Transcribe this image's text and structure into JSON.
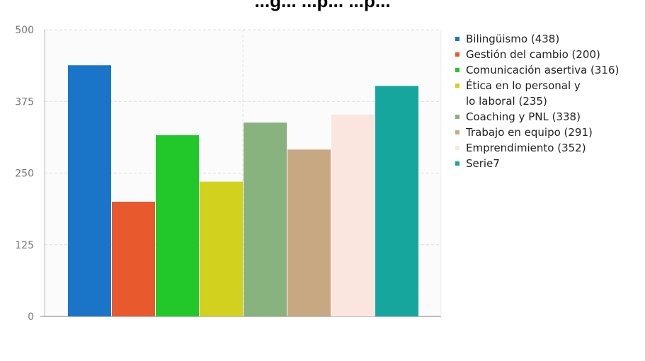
{
  "chart_data": {
    "type": "bar",
    "title": "...g... ...p... ...p...",
    "categories": [
      "Bilingüismo",
      "Gestión del cambio",
      "Comunicación asertiva",
      "Ética en lo personal y lo laboral",
      "Coaching y PNL",
      "Trabajo en equipo",
      "Emprendimiento",
      "Serie7"
    ],
    "values": [
      438,
      200,
      316,
      235,
      338,
      291,
      352,
      402
    ],
    "colors": [
      "#1a75c8",
      "#e85a2e",
      "#22c82a",
      "#d2d21e",
      "#88b27e",
      "#c8a883",
      "#fae6df",
      "#16a69e"
    ],
    "ylim": [
      0,
      500
    ],
    "yticks": [
      0,
      125,
      250,
      375,
      500
    ],
    "xlabel": "",
    "ylabel": "",
    "grid": true,
    "legend_position": "right",
    "legend": [
      {
        "lines": [
          "Bilingüismo (438)"
        ]
      },
      {
        "lines": [
          "Gestión del cambio (200)"
        ]
      },
      {
        "lines": [
          "Comunicación asertiva (316)"
        ]
      },
      {
        "lines": [
          "Ética en lo personal y",
          "lo laboral (235)"
        ]
      },
      {
        "lines": [
          "Coaching y PNL (338)"
        ]
      },
      {
        "lines": [
          "Trabajo en equipo (291)"
        ]
      },
      {
        "lines": [
          "Emprendimiento (352)"
        ]
      },
      {
        "lines": [
          "Serie7"
        ]
      }
    ]
  }
}
